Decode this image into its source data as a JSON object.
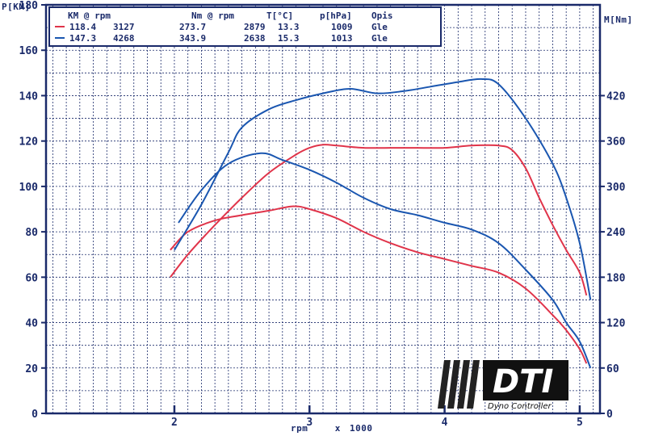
{
  "chart_data": {
    "type": "line",
    "ylabel_left": "P[KM]",
    "ylabel_right": "M[Nm]",
    "xlabel": "rpm   x 1000",
    "xlim": [
      1.05,
      5.15
    ],
    "ylim_left": [
      0,
      180
    ],
    "ylim_right": [
      0,
      540
    ],
    "x_ticks": [
      "2",
      "3",
      "4",
      "5"
    ],
    "y_ticks_left": [
      "0",
      "20",
      "40",
      "60",
      "80",
      "100",
      "120",
      "140",
      "160",
      "180"
    ],
    "y_ticks_right": [
      "0",
      "60",
      "120",
      "180",
      "240",
      "300",
      "360",
      "420"
    ],
    "grid": true,
    "legend": {
      "header": [
        "KM @ rpm",
        "Nm @ rpm",
        "T[°C]",
        "p[hPa]",
        "Opis"
      ],
      "rows": [
        {
          "color": "#e0344a",
          "km": "118.4",
          "km_rpm": "3127",
          "nm": "273.7",
          "nm_rpm": "2879",
          "t": "13.3",
          "p": "1009",
          "opis": "Gle"
        },
        {
          "color": "#1a56b0",
          "km": "147.3",
          "km_rpm": "4268",
          "nm": "343.9",
          "nm_rpm": "2638",
          "t": "15.3",
          "p": "1013",
          "opis": "Gle"
        }
      ]
    },
    "series": [
      {
        "color": "#e0344a",
        "axis": "left",
        "x": [
          1.97,
          2.1,
          2.3,
          2.5,
          2.7,
          2.9,
          3.0,
          3.1,
          3.2,
          3.4,
          3.6,
          3.8,
          4.0,
          4.2,
          4.4,
          4.5,
          4.6,
          4.7,
          4.8,
          4.9,
          5.0,
          5.05
        ],
        "y": [
          60,
          70,
          83,
          95,
          106,
          114,
          117,
          118.4,
          118,
          117,
          117,
          117,
          117,
          118,
          118,
          116,
          108,
          95,
          83,
          72,
          62,
          52
        ]
      },
      {
        "color": "#e0344a",
        "axis": "right",
        "x": [
          1.97,
          2.1,
          2.3,
          2.5,
          2.7,
          2.88,
          3.0,
          3.2,
          3.4,
          3.6,
          3.8,
          4.0,
          4.2,
          4.4,
          4.6,
          4.8,
          4.9,
          5.0,
          5.05
        ],
        "y": [
          216,
          240,
          255,
          262,
          268,
          273.7,
          270,
          258,
          240,
          225,
          213,
          204,
          195,
          186,
          165,
          130,
          110,
          85,
          66
        ]
      },
      {
        "color": "#1a56b0",
        "axis": "left",
        "x": [
          2.0,
          2.2,
          2.4,
          2.5,
          2.7,
          2.9,
          3.1,
          3.3,
          3.5,
          3.7,
          3.9,
          4.1,
          4.27,
          4.4,
          4.6,
          4.8,
          4.9,
          5.0,
          5.08
        ],
        "y": [
          72,
          92,
          115,
          126,
          134,
          138,
          141,
          143,
          141,
          142,
          144,
          146,
          147.3,
          145,
          130,
          110,
          95,
          75,
          50
        ]
      },
      {
        "color": "#1a56b0",
        "axis": "right",
        "x": [
          2.03,
          2.2,
          2.4,
          2.64,
          2.8,
          3.0,
          3.2,
          3.4,
          3.6,
          3.8,
          4.0,
          4.2,
          4.4,
          4.6,
          4.8,
          4.9,
          5.0,
          5.08
        ],
        "y": [
          252,
          295,
          330,
          343.9,
          335,
          322,
          305,
          285,
          270,
          262,
          252,
          243,
          225,
          190,
          150,
          120,
          95,
          60
        ]
      }
    ]
  },
  "logo": {
    "brand": "DTI",
    "sub": "Dyno Controller"
  }
}
